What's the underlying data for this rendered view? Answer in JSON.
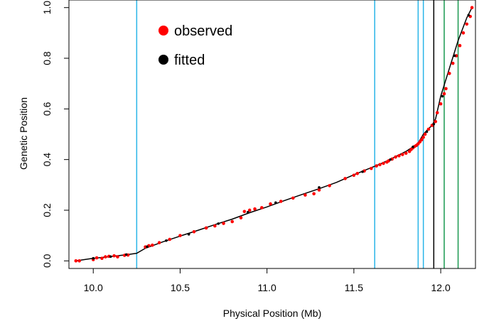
{
  "chart_data": {
    "type": "scatter",
    "title": "",
    "xlabel": "Physical Position (Mb)",
    "ylabel": "Genetic Position",
    "xlim": [
      9.86,
      12.2
    ],
    "ylim": [
      -0.03,
      1.03
    ],
    "x_ticks": [
      "10.0",
      "10.5",
      "11.0",
      "11.5",
      "12.0"
    ],
    "y_ticks": [
      "0.0",
      "0.2",
      "0.4",
      "0.6",
      "0.8",
      "1.0"
    ],
    "grid": false,
    "legend": {
      "placement": "top-left",
      "entries": [
        {
          "label": "observed",
          "color": "#ff0000"
        },
        {
          "label": "fitted",
          "color": "#000000"
        }
      ]
    },
    "fitted_line": {
      "color": "#000000",
      "x": [
        9.9,
        10.0,
        10.1,
        10.2,
        10.25,
        10.3,
        10.4,
        10.5,
        10.6,
        10.7,
        10.8,
        10.9,
        11.0,
        11.1,
        11.2,
        11.3,
        11.4,
        11.5,
        11.6,
        11.65,
        11.7,
        11.75,
        11.8,
        11.84,
        11.87,
        11.9,
        11.93,
        11.95,
        11.97,
        12.0,
        12.05,
        12.1,
        12.15,
        12.18
      ],
      "y": [
        0.0,
        0.01,
        0.017,
        0.025,
        0.03,
        0.05,
        0.075,
        0.098,
        0.12,
        0.143,
        0.165,
        0.19,
        0.213,
        0.238,
        0.262,
        0.285,
        0.31,
        0.34,
        0.368,
        0.382,
        0.398,
        0.415,
        0.432,
        0.45,
        0.465,
        0.5,
        0.522,
        0.535,
        0.56,
        0.65,
        0.76,
        0.87,
        0.96,
        1.0
      ]
    },
    "observed": {
      "color": "#ff0000",
      "x": [
        9.9,
        9.92,
        10.0,
        10.02,
        10.05,
        10.07,
        10.09,
        10.12,
        10.14,
        10.18,
        10.2,
        10.3,
        10.32,
        10.34,
        10.38,
        10.44,
        10.5,
        10.58,
        10.65,
        10.7,
        10.75,
        10.8,
        10.85,
        10.87,
        10.9,
        10.93,
        10.97,
        11.02,
        11.08,
        11.15,
        11.22,
        11.27,
        11.3,
        11.36,
        11.45,
        11.5,
        11.52,
        11.56,
        11.6,
        11.63,
        11.65,
        11.67,
        11.69,
        11.7,
        11.72,
        11.74,
        11.76,
        11.78,
        11.8,
        11.82,
        11.83,
        11.84,
        11.85,
        11.86,
        11.87,
        11.88,
        11.89,
        11.9,
        11.91,
        11.93,
        11.95,
        11.97,
        11.98,
        12.0,
        12.02,
        12.03,
        12.05,
        12.07,
        12.09,
        12.11,
        12.13,
        12.15,
        12.17,
        12.18
      ],
      "y": [
        0.0,
        0.0,
        0.005,
        0.012,
        0.01,
        0.016,
        0.018,
        0.02,
        0.016,
        0.022,
        0.023,
        0.055,
        0.06,
        0.062,
        0.072,
        0.085,
        0.1,
        0.115,
        0.13,
        0.138,
        0.148,
        0.155,
        0.17,
        0.195,
        0.2,
        0.205,
        0.21,
        0.225,
        0.235,
        0.248,
        0.26,
        0.265,
        0.28,
        0.297,
        0.325,
        0.338,
        0.345,
        0.355,
        0.365,
        0.375,
        0.38,
        0.385,
        0.39,
        0.395,
        0.402,
        0.41,
        0.415,
        0.42,
        0.425,
        0.432,
        0.44,
        0.446,
        0.452,
        0.456,
        0.462,
        0.47,
        0.478,
        0.488,
        0.5,
        0.52,
        0.535,
        0.55,
        0.585,
        0.62,
        0.66,
        0.68,
        0.74,
        0.78,
        0.81,
        0.85,
        0.9,
        0.935,
        0.965,
        1.0
      ]
    },
    "fitted_points": {
      "color": "#000000",
      "x": [
        10.0,
        10.1,
        10.19,
        10.31,
        10.42,
        10.55,
        10.72,
        10.89,
        11.05,
        11.3,
        11.55,
        11.71,
        11.84,
        11.92,
        11.96,
        12.01,
        12.08,
        12.16
      ],
      "y": [
        0.01,
        0.017,
        0.025,
        0.056,
        0.08,
        0.105,
        0.147,
        0.192,
        0.23,
        0.29,
        0.352,
        0.4,
        0.45,
        0.51,
        0.54,
        0.65,
        0.81,
        0.97
      ]
    },
    "vertical_lines": [
      {
        "x": 10.25,
        "color": "#29b5e8"
      },
      {
        "x": 11.62,
        "color": "#29b5e8"
      },
      {
        "x": 11.87,
        "color": "#29b5e8"
      },
      {
        "x": 11.9,
        "color": "#29b5e8"
      },
      {
        "x": 11.96,
        "color": "#000000"
      },
      {
        "x": 12.02,
        "color": "#1a9850"
      },
      {
        "x": 12.1,
        "color": "#1a9850"
      }
    ]
  }
}
